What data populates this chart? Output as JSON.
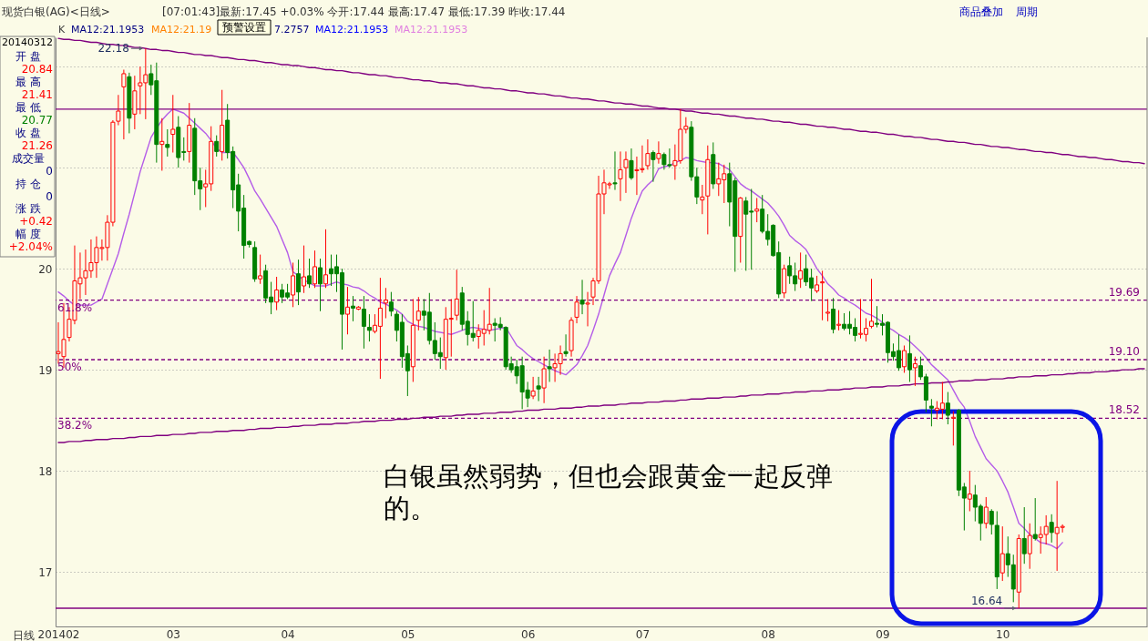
{
  "chart_data": {
    "type": "candlestick",
    "title": "现货白银(AG)<日线>",
    "subtitle": "[07:01:43]最新:17.45 +0.03% 今开:17.44 最高:17.47 最低:17.39 昨收:17.44",
    "xlabel": "日线",
    "categories": [
      "201402",
      null,
      null,
      null,
      null,
      null,
      null,
      null,
      null,
      null,
      null,
      null,
      null,
      null,
      null,
      null,
      null,
      null,
      null,
      null,
      null,
      "03",
      null,
      null,
      null,
      null,
      null,
      null,
      null,
      null,
      null,
      null,
      null,
      null,
      null,
      null,
      null,
      null,
      null,
      null,
      null,
      null,
      "04",
      null,
      null,
      null,
      null,
      null,
      null,
      null,
      null,
      null,
      null,
      null,
      null,
      null,
      null,
      null,
      null,
      null,
      null,
      null,
      null,
      null,
      "05",
      null,
      null,
      null,
      null,
      null,
      null,
      null,
      null,
      null,
      null,
      null,
      null,
      null,
      null,
      null,
      null,
      null,
      null,
      null,
      null,
      null,
      "06",
      null,
      null,
      null,
      null,
      null,
      null,
      null,
      null,
      null,
      null,
      null,
      null,
      null,
      null,
      null,
      null,
      null,
      null,
      null,
      null,
      "07",
      null,
      null,
      null,
      null,
      null,
      null,
      null,
      null,
      null,
      null,
      null,
      null,
      null,
      null,
      null,
      null,
      null,
      null,
      null,
      null,
      null,
      null,
      "08",
      null,
      null,
      null,
      null,
      null,
      null,
      null,
      null,
      null,
      null,
      null,
      null,
      null,
      null,
      null,
      null,
      null,
      null,
      null,
      null,
      "09",
      null,
      null,
      null,
      null,
      null,
      null,
      null,
      null,
      null,
      null,
      null,
      null,
      null,
      null,
      null,
      null,
      null,
      null,
      null,
      null,
      null,
      "10",
      null,
      null,
      null,
      null,
      null,
      null,
      null,
      null,
      null,
      null,
      null,
      null,
      null,
      null,
      null,
      null,
      null,
      null,
      null,
      null,
      null,
      null,
      null,
      null,
      null,
      null
    ],
    "ohlc": [
      [
        19.16,
        19.47,
        19.06,
        19.18
      ],
      [
        19.13,
        19.66,
        19.02,
        19.3
      ],
      [
        19.32,
        19.62,
        19.28,
        19.5
      ],
      [
        19.49,
        20.23,
        19.45,
        19.88
      ],
      [
        19.85,
        20.16,
        19.7,
        19.91
      ],
      [
        19.91,
        20.19,
        19.74,
        19.98
      ],
      [
        19.98,
        20.29,
        19.91,
        20.06
      ],
      [
        20.06,
        20.32,
        19.91,
        20.21
      ],
      [
        20.2,
        20.29,
        20.08,
        20.21
      ],
      [
        20.21,
        20.53,
        20.08,
        20.46
      ],
      [
        20.46,
        21.47,
        20.42,
        21.45
      ],
      [
        21.46,
        21.72,
        21.42,
        21.56
      ],
      [
        21.8,
        21.97,
        21.28,
        21.93
      ],
      [
        21.9,
        21.94,
        21.34,
        21.49
      ],
      [
        21.53,
        21.91,
        21.38,
        21.76
      ],
      [
        21.81,
        22.0,
        21.53,
        21.84
      ],
      [
        21.84,
        22.18,
        21.48,
        21.92
      ],
      [
        21.93,
        22.02,
        21.72,
        21.82
      ],
      [
        21.86,
        22.04,
        21.05,
        21.23
      ],
      [
        21.23,
        21.49,
        20.97,
        21.26
      ],
      [
        21.23,
        21.38,
        21.11,
        21.2
      ],
      [
        21.33,
        21.72,
        21.15,
        21.38
      ],
      [
        21.4,
        21.51,
        21.0,
        21.1
      ],
      [
        21.16,
        21.3,
        21.07,
        21.15
      ],
      [
        21.16,
        21.64,
        21.05,
        21.42
      ],
      [
        21.39,
        21.49,
        20.73,
        20.87
      ],
      [
        20.87,
        21.0,
        20.58,
        20.79
      ],
      [
        20.81,
        20.98,
        20.61,
        20.84
      ],
      [
        20.84,
        21.41,
        20.77,
        21.26
      ],
      [
        21.26,
        21.32,
        21.11,
        21.16
      ],
      [
        21.16,
        21.77,
        21.07,
        21.42
      ],
      [
        21.47,
        21.63,
        21.09,
        21.15
      ],
      [
        21.16,
        21.21,
        20.6,
        20.78
      ],
      [
        20.83,
        20.94,
        20.37,
        20.57
      ],
      [
        20.6,
        20.73,
        20.1,
        20.23
      ],
      [
        20.27,
        20.28,
        20.21,
        20.24
      ],
      [
        20.21,
        20.27,
        19.87,
        19.9
      ],
      [
        19.9,
        20.14,
        19.85,
        19.93
      ],
      [
        19.98,
        20.04,
        19.66,
        19.71
      ],
      [
        19.72,
        19.87,
        19.55,
        19.67
      ],
      [
        19.67,
        19.92,
        19.59,
        19.79
      ],
      [
        19.79,
        19.85,
        19.66,
        19.72
      ],
      [
        19.76,
        19.85,
        19.7,
        19.72
      ],
      [
        19.74,
        20.06,
        19.62,
        19.93
      ],
      [
        19.95,
        20.09,
        19.64,
        19.77
      ],
      [
        19.83,
        20.23,
        19.76,
        19.92
      ],
      [
        19.93,
        20.1,
        19.81,
        19.85
      ],
      [
        19.85,
        20.18,
        19.81,
        20.02
      ],
      [
        20.01,
        20.1,
        19.58,
        19.85
      ],
      [
        19.85,
        20.39,
        19.81,
        19.94
      ],
      [
        20.0,
        20.14,
        19.83,
        19.95
      ],
      [
        20.02,
        20.14,
        19.77,
        19.95
      ],
      [
        19.96,
        20.0,
        19.2,
        19.55
      ],
      [
        19.55,
        19.82,
        19.35,
        19.62
      ],
      [
        19.63,
        19.73,
        19.48,
        19.61
      ],
      [
        19.6,
        19.63,
        19.59,
        19.62
      ],
      [
        19.6,
        19.73,
        19.21,
        19.43
      ],
      [
        19.42,
        19.55,
        19.28,
        19.39
      ],
      [
        19.38,
        19.55,
        19.36,
        19.44
      ],
      [
        19.43,
        19.91,
        18.91,
        19.61
      ],
      [
        19.66,
        19.81,
        19.51,
        19.69
      ],
      [
        19.67,
        19.77,
        19.53,
        19.58
      ],
      [
        19.55,
        19.58,
        19.28,
        19.39
      ],
      [
        19.47,
        19.55,
        19.02,
        19.13
      ],
      [
        19.16,
        19.24,
        18.74,
        18.99
      ],
      [
        19.03,
        19.7,
        18.88,
        19.44
      ],
      [
        19.49,
        19.72,
        19.39,
        19.58
      ],
      [
        19.58,
        19.7,
        19.39,
        19.54
      ],
      [
        19.57,
        19.76,
        19.25,
        19.29
      ],
      [
        19.29,
        19.47,
        19.1,
        19.16
      ],
      [
        19.17,
        19.32,
        19.01,
        19.13
      ],
      [
        19.12,
        19.62,
        19.0,
        19.5
      ],
      [
        19.5,
        19.7,
        19.13,
        19.51
      ],
      [
        19.54,
        19.99,
        19.49,
        19.7
      ],
      [
        19.76,
        19.82,
        19.39,
        19.45
      ],
      [
        19.48,
        19.58,
        19.24,
        19.35
      ],
      [
        19.36,
        19.68,
        19.28,
        19.32
      ],
      [
        19.33,
        19.45,
        19.21,
        19.39
      ],
      [
        19.36,
        19.59,
        19.24,
        19.4
      ],
      [
        19.39,
        19.81,
        19.35,
        19.45
      ],
      [
        19.46,
        19.51,
        19.28,
        19.44
      ],
      [
        19.45,
        19.52,
        19.39,
        19.42
      ],
      [
        19.42,
        19.43,
        19.0,
        19.03
      ],
      [
        19.06,
        19.13,
        18.97,
        19.0
      ],
      [
        19.03,
        19.1,
        18.86,
        18.94
      ],
      [
        19.04,
        19.13,
        18.61,
        18.78
      ],
      [
        18.8,
        18.88,
        18.63,
        18.72
      ],
      [
        18.74,
        18.93,
        18.71,
        18.79
      ],
      [
        18.84,
        18.93,
        18.69,
        18.81
      ],
      [
        18.82,
        19.13,
        18.67,
        19.01
      ],
      [
        19.03,
        19.2,
        18.88,
        19.01
      ],
      [
        19.02,
        19.16,
        18.88,
        19.06
      ],
      [
        19.06,
        19.24,
        18.95,
        19.16
      ],
      [
        19.18,
        19.35,
        19.13,
        19.16
      ],
      [
        19.19,
        19.52,
        19.13,
        19.49
      ],
      [
        19.52,
        19.73,
        19.46,
        19.67
      ],
      [
        19.69,
        19.89,
        19.55,
        19.65
      ],
      [
        19.65,
        19.77,
        19.43,
        19.66
      ],
      [
        19.72,
        19.91,
        19.64,
        19.88
      ],
      [
        19.88,
        20.92,
        19.85,
        20.74
      ],
      [
        20.74,
        20.98,
        20.54,
        20.85
      ],
      [
        20.83,
        20.86,
        20.79,
        20.84
      ],
      [
        20.85,
        21.16,
        20.78,
        20.84
      ],
      [
        20.89,
        21.16,
        20.67,
        20.98
      ],
      [
        21.0,
        21.16,
        20.75,
        21.08
      ],
      [
        21.07,
        21.19,
        20.88,
        20.9
      ],
      [
        20.97,
        21.11,
        20.73,
        20.98
      ],
      [
        20.98,
        21.22,
        20.95,
        20.99
      ],
      [
        21.02,
        21.28,
        20.98,
        21.14
      ],
      [
        21.15,
        21.17,
        20.86,
        21.08
      ],
      [
        21.09,
        21.26,
        21.04,
        21.14
      ],
      [
        21.13,
        21.15,
        20.98,
        21.03
      ],
      [
        21.03,
        21.19,
        21.0,
        21.02
      ],
      [
        21.02,
        21.23,
        20.88,
        21.07
      ],
      [
        21.07,
        21.58,
        21.04,
        21.38
      ],
      [
        21.38,
        21.5,
        21.34,
        21.41
      ],
      [
        21.4,
        21.46,
        20.87,
        20.91
      ],
      [
        20.91,
        21.0,
        20.64,
        20.71
      ],
      [
        20.68,
        20.83,
        20.54,
        20.71
      ],
      [
        20.72,
        21.22,
        20.34,
        21.08
      ],
      [
        21.13,
        21.25,
        20.79,
        20.84
      ],
      [
        20.84,
        21.05,
        20.72,
        20.89
      ],
      [
        20.88,
        21.03,
        20.65,
        20.94
      ],
      [
        20.94,
        21.05,
        20.42,
        20.66
      ],
      [
        20.87,
        20.9,
        19.97,
        20.32
      ],
      [
        20.32,
        20.71,
        20.06,
        20.7
      ],
      [
        20.67,
        20.71,
        19.98,
        20.54
      ],
      [
        20.57,
        20.79,
        19.99,
        20.56
      ],
      [
        20.57,
        20.7,
        20.46,
        20.59
      ],
      [
        20.59,
        20.73,
        20.35,
        20.37
      ],
      [
        20.37,
        20.54,
        20.23,
        20.29
      ],
      [
        20.43,
        20.44,
        20.12,
        20.13
      ],
      [
        20.16,
        20.27,
        19.71,
        19.75
      ],
      [
        19.76,
        20.04,
        19.71,
        20.0
      ],
      [
        20.03,
        20.12,
        19.85,
        19.93
      ],
      [
        19.93,
        20.06,
        19.78,
        19.85
      ],
      [
        19.9,
        20.16,
        19.81,
        19.98
      ],
      [
        20.0,
        20.14,
        19.83,
        19.87
      ],
      [
        19.91,
        20.0,
        19.68,
        19.81
      ],
      [
        19.78,
        19.93,
        19.76,
        19.84
      ],
      [
        19.86,
        19.98,
        19.49,
        19.87
      ],
      [
        19.56,
        19.7,
        19.48,
        19.57
      ],
      [
        19.6,
        19.71,
        19.36,
        19.4
      ],
      [
        19.44,
        19.59,
        19.39,
        19.45
      ],
      [
        19.45,
        19.56,
        19.39,
        19.41
      ],
      [
        19.45,
        19.58,
        19.35,
        19.41
      ],
      [
        19.42,
        19.51,
        19.28,
        19.34
      ],
      [
        19.35,
        19.7,
        19.31,
        19.36
      ],
      [
        19.35,
        19.51,
        19.28,
        19.41
      ],
      [
        19.43,
        19.9,
        19.41,
        19.48
      ],
      [
        19.46,
        19.63,
        19.42,
        19.45
      ],
      [
        19.46,
        19.55,
        19.34,
        19.44
      ],
      [
        19.47,
        19.48,
        19.07,
        19.17
      ],
      [
        19.18,
        19.26,
        19.09,
        19.13
      ],
      [
        19.19,
        19.35,
        18.99,
        19.02
      ],
      [
        19.03,
        19.24,
        18.97,
        19.19
      ],
      [
        19.16,
        19.34,
        18.88,
        19.0
      ],
      [
        19.02,
        19.13,
        18.84,
        19.06
      ],
      [
        19.04,
        19.13,
        18.9,
        18.93
      ],
      [
        18.93,
        18.96,
        18.58,
        18.7
      ],
      [
        18.64,
        18.71,
        18.44,
        18.62
      ],
      [
        18.6,
        18.69,
        18.51,
        18.62
      ],
      [
        18.61,
        18.88,
        18.51,
        18.67
      ],
      [
        18.67,
        18.78,
        18.46,
        18.55
      ],
      [
        18.52,
        18.59,
        18.25,
        18.53
      ],
      [
        18.6,
        18.61,
        17.75,
        17.81
      ],
      [
        17.84,
        17.88,
        17.41,
        17.73
      ],
      [
        17.72,
        18.0,
        17.6,
        17.77
      ],
      [
        17.76,
        17.86,
        17.5,
        17.64
      ],
      [
        17.65,
        17.67,
        17.31,
        17.48
      ],
      [
        17.48,
        17.74,
        17.43,
        17.64
      ],
      [
        17.6,
        17.62,
        17.37,
        17.47
      ],
      [
        17.46,
        17.6,
        16.83,
        16.95
      ],
      [
        16.99,
        17.45,
        16.91,
        17.18
      ],
      [
        17.18,
        17.35,
        16.95,
        17.07
      ],
      [
        17.07,
        17.17,
        16.7,
        16.83
      ],
      [
        16.8,
        17.37,
        16.64,
        17.33
      ],
      [
        17.33,
        17.64,
        17.08,
        17.18
      ],
      [
        17.18,
        17.48,
        17.03,
        17.36
      ],
      [
        17.37,
        17.73,
        17.31,
        17.33
      ],
      [
        17.34,
        17.45,
        17.18,
        17.37
      ],
      [
        17.37,
        17.56,
        17.27,
        17.45
      ],
      [
        17.49,
        17.57,
        17.29,
        17.39
      ],
      [
        17.38,
        17.9,
        17.01,
        17.44
      ],
      [
        17.44,
        17.47,
        17.39,
        17.45
      ],
      null,
      null,
      null,
      null,
      null,
      null,
      null,
      null,
      null,
      null,
      null,
      null,
      null,
      null,
      null
    ],
    "colors": [
      "#ff0000",
      "#ff0000",
      "#ff0000",
      "#ff0000",
      "#ff0000",
      "#ff0000",
      "#ff0000",
      "#ff0000",
      "#ff0000",
      "#ff0000",
      "#ff0000",
      "#ff0000",
      "#ff0000",
      "#008000",
      "#ff0000",
      "#ff0000",
      "#ff0000",
      "#008000",
      "#008000",
      "#ff0000",
      "#008000",
      "#ff0000",
      "#008000",
      "#008000",
      "#ff0000",
      "#008000",
      "#008000",
      "#ff0000",
      "#ff0000",
      "#008000",
      "#ff0000",
      "#008000",
      "#008000",
      "#008000",
      "#008000",
      "#008000",
      "#008000",
      "#ff0000",
      "#008000",
      "#008000",
      "#ff0000",
      "#008000",
      "#008000",
      "#ff0000",
      "#008000",
      "#ff0000",
      "#008000",
      "#ff0000",
      "#008000",
      "#ff0000",
      "#008000",
      "#008000",
      "#008000",
      "#ff0000",
      "#008000",
      "#ff0000",
      "#008000",
      "#008000",
      "#ff0000",
      "#ff0000",
      "#ff0000",
      "#008000",
      "#008000",
      "#008000",
      "#008000",
      "#ff0000",
      "#ff0000",
      "#008000",
      "#008000",
      "#008000",
      "#008000",
      "#ff0000",
      "#ff0000",
      "#ff0000",
      "#008000",
      "#008000",
      "#008000",
      "#ff0000",
      "#ff0000",
      "#ff0000",
      "#008000",
      "#008000",
      "#008000",
      "#008000",
      "#008000",
      "#008000",
      "#008000",
      "#ff0000",
      "#008000",
      "#ff0000",
      "#008000",
      "#ff0000",
      "#ff0000",
      "#008000",
      "#ff0000",
      "#ff0000",
      "#008000",
      "#ff0000",
      "#ff0000",
      "#ff0000",
      "#ff0000",
      "#ff0000",
      "#008000",
      "#ff0000",
      "#ff0000",
      "#008000",
      "#ff0000",
      "#ff0000",
      "#ff0000",
      "#008000",
      "#ff0000",
      "#008000",
      "#008000",
      "#ff0000",
      "#ff0000",
      "#ff0000",
      "#008000",
      "#008000",
      "#ff0000",
      "#ff0000",
      "#008000",
      "#ff0000",
      "#ff0000",
      "#008000",
      "#008000",
      "#ff0000",
      "#008000",
      "#008000",
      "#ff0000",
      "#008000",
      "#008000",
      "#008000",
      "#008000",
      "#ff0000",
      "#008000",
      "#008000",
      "#ff0000",
      "#008000",
      "#008000",
      "#ff0000",
      "#ff0000",
      "#ff0000",
      "#008000",
      "#ff0000",
      "#008000",
      "#008000",
      "#008000",
      "#ff0000",
      "#ff0000",
      "#ff0000",
      "#008000",
      "#008000",
      "#008000",
      "#008000",
      "#008000",
      "#ff0000",
      "#008000",
      "#ff0000",
      "#008000",
      "#008000",
      "#008000",
      "#ff0000",
      "#ff0000",
      "#008000",
      "#ff0000",
      "#008000",
      "#008000",
      "#ff0000",
      "#008000",
      "#008000",
      "#ff0000",
      "#008000",
      "#008000",
      "#ff0000",
      "#008000",
      "#008000",
      "#ff0000",
      "#008000",
      "#ff0000",
      "#008000",
      "#ff0000",
      "#ff0000",
      "#008000",
      "#ff0000",
      "#ff0000",
      null,
      null,
      null,
      null,
      null,
      null,
      null,
      null,
      null,
      null,
      null,
      null,
      null,
      null,
      null
    ],
    "series": [
      {
        "type": "line",
        "color": "#b45ce8",
        "values": [
          19.77,
          19.73,
          19.68,
          19.64,
          19.64,
          19.64,
          19.64,
          19.67,
          19.7,
          19.85,
          20.0,
          20.15,
          20.35,
          20.54,
          20.75,
          20.96,
          21.13,
          21.3,
          21.39,
          21.47,
          21.53,
          21.58,
          21.56,
          21.54,
          21.49,
          21.44,
          21.39,
          21.34,
          21.27,
          21.19,
          21.15,
          21.15,
          21.15,
          21.08,
          21.0,
          20.89,
          20.77,
          20.69,
          20.6,
          20.51,
          20.42,
          20.29,
          20.16,
          19.97,
          19.93,
          19.89,
          19.86,
          19.83,
          19.83,
          19.83,
          19.85,
          19.87,
          19.85,
          19.84,
          19.82,
          19.81,
          19.78,
          19.74,
          19.71,
          19.67,
          19.65,
          19.62,
          19.59,
          19.55,
          19.48,
          19.45,
          19.43,
          19.42,
          19.4,
          19.38,
          19.37,
          19.36,
          19.35,
          19.37,
          19.39,
          19.41,
          19.42,
          19.41,
          19.4,
          19.39,
          19.4,
          19.41,
          19.42,
          19.33,
          19.24,
          19.2,
          19.15,
          19.11,
          19.08,
          19.05,
          19.02,
          18.99,
          18.97,
          18.95,
          19.0,
          19.05,
          19.14,
          19.24,
          19.39,
          19.55,
          19.74,
          19.93,
          20.05,
          20.16,
          20.33,
          20.5,
          20.64,
          20.77,
          20.83,
          20.88,
          20.99,
          21.01,
          21.02,
          21.05,
          21.07,
          21.1,
          21.09,
          21.07,
          21.06,
          21.05,
          21.05,
          21.04,
          21.01,
          20.98,
          20.91,
          20.84,
          20.8,
          20.77,
          20.73,
          20.69,
          20.65,
          20.59,
          20.52,
          20.43,
          20.33,
          20.28,
          20.24,
          20.19,
          20.1,
          20.0,
          19.93,
          19.85,
          19.8,
          19.74,
          19.71,
          19.67,
          19.64,
          19.6,
          19.56,
          19.54,
          19.51,
          19.47,
          19.42,
          19.39,
          19.35,
          19.32,
          19.28,
          19.23,
          19.18,
          19.12,
          19.05,
          19.0,
          18.95,
          18.9,
          18.8,
          18.7,
          18.63,
          18.49,
          18.34,
          18.23,
          18.12,
          18.06,
          18.0,
          17.9,
          17.79,
          17.64,
          17.48,
          17.43,
          17.37,
          17.33,
          17.29,
          17.28,
          17.26,
          17.23,
          17.29,
          null,
          null,
          null,
          null,
          null,
          null,
          null,
          null,
          null,
          null,
          null,
          null,
          null,
          null,
          null
        ]
      },
      {
        "type": "line",
        "color": "#800080",
        "values": [
          22.28,
          22.27,
          22.27,
          22.26,
          22.26,
          22.25,
          22.24,
          22.24,
          22.23,
          22.22,
          22.22,
          22.21,
          22.21,
          22.2,
          22.19,
          22.19,
          22.18,
          22.17,
          22.17,
          22.16,
          22.16,
          22.15,
          22.14,
          22.14,
          22.13,
          22.12,
          22.12,
          22.11,
          22.11,
          22.1,
          22.09,
          22.09,
          22.08,
          22.07,
          22.07,
          22.06,
          22.06,
          22.05,
          22.04,
          22.04,
          22.03,
          22.02,
          22.02,
          22.01,
          22.01,
          22.0,
          21.99,
          21.99,
          21.98,
          21.97,
          21.97,
          21.96,
          21.96,
          21.95,
          21.94,
          21.94,
          21.93,
          21.92,
          21.92,
          21.91,
          21.91,
          21.9,
          21.89,
          21.89,
          21.88,
          21.87,
          21.87,
          21.86,
          21.86,
          21.85,
          21.84,
          21.84,
          21.83,
          21.83,
          21.82,
          21.81,
          21.81,
          21.8,
          21.79,
          21.79,
          21.78,
          21.78,
          21.77,
          21.76,
          21.76,
          21.75,
          21.74,
          21.74,
          21.73,
          21.73,
          21.72,
          21.71,
          21.71,
          21.7,
          21.69,
          21.69,
          21.68,
          21.68,
          21.67,
          21.66,
          21.66,
          21.65,
          21.64,
          21.64,
          21.63,
          21.63,
          21.62,
          21.61,
          21.61,
          21.6,
          21.59,
          21.59,
          21.58,
          21.58,
          21.57,
          21.56,
          21.56,
          21.55,
          21.54,
          21.54,
          21.53,
          21.53,
          21.52,
          21.51,
          21.51,
          21.5,
          21.49,
          21.49,
          21.48,
          21.48,
          21.47,
          21.46,
          21.46,
          21.45,
          21.45,
          21.44,
          21.43,
          21.43,
          21.42,
          21.41,
          21.41,
          21.4,
          21.4,
          21.39,
          21.38,
          21.38,
          21.37,
          21.36,
          21.36,
          21.35,
          21.35,
          21.34,
          21.33,
          21.33,
          21.32,
          21.31,
          21.31,
          21.3,
          21.3,
          21.29,
          21.28,
          21.28,
          21.27,
          21.26,
          21.26,
          21.25,
          21.25,
          21.24,
          21.23,
          21.23,
          21.22,
          21.21,
          21.21,
          21.2,
          21.2,
          21.19,
          21.18,
          21.18,
          21.17,
          21.16,
          21.16,
          21.15,
          21.15,
          21.14,
          21.13,
          21.13,
          21.12,
          21.11,
          21.11,
          21.1,
          21.1,
          21.09,
          21.08,
          21.08,
          21.07,
          21.06,
          21.06,
          21.05,
          21.05,
          21.04
        ]
      },
      {
        "type": "line",
        "color": "#800080",
        "values": [
          18.28,
          18.28,
          18.29,
          18.29,
          18.29,
          18.3,
          18.3,
          18.31,
          18.31,
          18.31,
          18.32,
          18.32,
          18.32,
          18.33,
          18.33,
          18.34,
          18.34,
          18.34,
          18.35,
          18.35,
          18.35,
          18.36,
          18.36,
          18.36,
          18.37,
          18.37,
          18.38,
          18.38,
          18.38,
          18.39,
          18.39,
          18.39,
          18.4,
          18.4,
          18.4,
          18.41,
          18.41,
          18.42,
          18.42,
          18.42,
          18.43,
          18.43,
          18.43,
          18.44,
          18.44,
          18.45,
          18.45,
          18.45,
          18.46,
          18.46,
          18.46,
          18.47,
          18.47,
          18.47,
          18.48,
          18.48,
          18.49,
          18.49,
          18.49,
          18.5,
          18.5,
          18.5,
          18.51,
          18.51,
          18.51,
          18.52,
          18.52,
          18.53,
          18.53,
          18.53,
          18.54,
          18.54,
          18.54,
          18.55,
          18.55,
          18.56,
          18.56,
          18.56,
          18.57,
          18.57,
          18.57,
          18.58,
          18.58,
          18.58,
          18.59,
          18.59,
          18.6,
          18.6,
          18.6,
          18.61,
          18.61,
          18.61,
          18.62,
          18.62,
          18.62,
          18.63,
          18.63,
          18.64,
          18.64,
          18.64,
          18.65,
          18.65,
          18.65,
          18.66,
          18.66,
          18.67,
          18.67,
          18.67,
          18.68,
          18.68,
          18.68,
          18.69,
          18.69,
          18.69,
          18.7,
          18.7,
          18.71,
          18.71,
          18.71,
          18.72,
          18.72,
          18.72,
          18.73,
          18.73,
          18.73,
          18.74,
          18.74,
          18.75,
          18.75,
          18.75,
          18.76,
          18.76,
          18.76,
          18.77,
          18.77,
          18.78,
          18.78,
          18.78,
          18.79,
          18.79,
          18.79,
          18.8,
          18.8,
          18.8,
          18.81,
          18.81,
          18.82,
          18.82,
          18.82,
          18.83,
          18.83,
          18.83,
          18.84,
          18.84,
          18.84,
          18.85,
          18.85,
          18.86,
          18.86,
          18.86,
          18.87,
          18.87,
          18.87,
          18.88,
          18.88,
          18.89,
          18.89,
          18.89,
          18.9,
          18.9,
          18.9,
          18.91,
          18.91,
          18.91,
          18.92,
          18.92,
          18.93,
          18.93,
          18.93,
          18.94,
          18.94,
          18.94,
          18.95,
          18.95,
          18.95,
          18.96,
          18.96,
          18.97,
          18.97,
          18.97,
          18.98,
          18.98,
          18.98,
          18.99,
          18.99,
          19.0,
          19.0,
          19.0,
          19.01,
          19.01
        ]
      }
    ],
    "ref_lines": [
      {
        "axis": "y",
        "value": 21.58,
        "color": "#800080"
      },
      {
        "axis": "y",
        "value": 16.64,
        "color": "#800080"
      },
      {
        "axis": "y",
        "value": 19.69,
        "label": "19.69",
        "color": "#800080",
        "line_style": "dashed"
      },
      {
        "axis": "y",
        "value": 19.1,
        "label": "19.10",
        "color": "#800080",
        "line_style": "dashed"
      },
      {
        "axis": "y",
        "value": 18.52,
        "label": "18.52",
        "color": "#800080",
        "line_style": "dashed"
      }
    ],
    "annotations": [
      "商品叠加",
      "周期",
      "预警设置",
      "K",
      "MA12:21.1953",
      "MA12:21.19",
      "7.2757",
      "MA12:21.1953",
      "MA12:21.1953",
      "20140312",
      "开 盘",
      "20.84",
      "最 高",
      "21.41",
      "最 低",
      "20.77",
      "收 盘",
      "21.26",
      "成交量",
      "0",
      "持 仓",
      "0",
      "涨 跌",
      "+0.42",
      "幅 度",
      "+2.04%",
      "白银虽然弱势，但也会跟黄金一起反弹的。",
      {
        "text": "22.18",
        "y": 22.18
      },
      {
        "text": "16.64",
        "y": 16.64
      },
      {
        "text": "61.8%",
        "y": 19.69
      },
      {
        "text": "50%",
        "y": 19.1
      },
      {
        "text": "38.2%",
        "y": 18.52
      }
    ],
    "ylim": [
      16.46,
      22.29
    ],
    "yticks": [
      17,
      18,
      19,
      20,
      {
        "value": 21,
        "label": null
      },
      {
        "value": 22,
        "label": null
      }
    ],
    "grid": "y"
  }
}
